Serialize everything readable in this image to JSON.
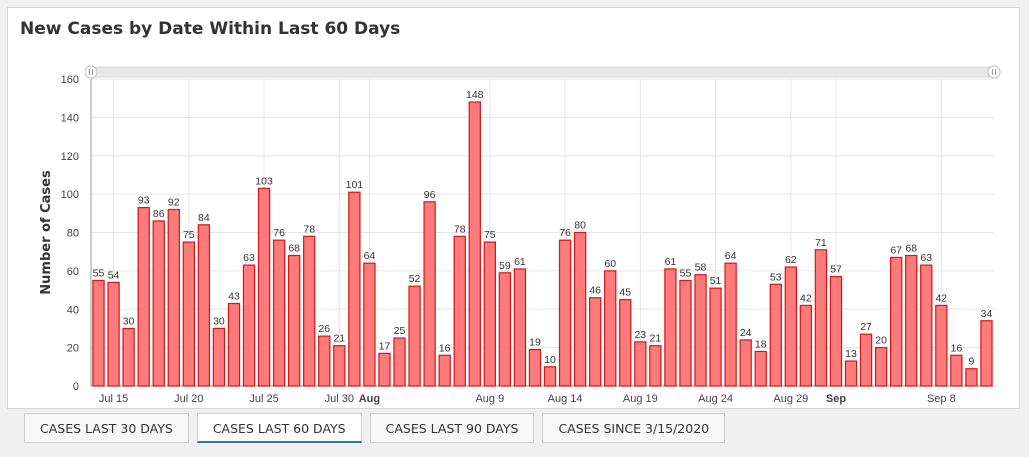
{
  "chart_title": "New Cases by Date Within Last 60 Days",
  "tabs": [
    {
      "label": "CASES LAST 30 DAYS",
      "active": false
    },
    {
      "label": "CASES LAST 60 DAYS",
      "active": true
    },
    {
      "label": "CASES LAST 90 DAYS",
      "active": false
    },
    {
      "label": "CASES SINCE 3/15/2020",
      "active": false
    }
  ],
  "colors": {
    "bar_fill": "#ff7a7a",
    "bar_stroke": "#d01818",
    "grid": "#e6e6e6",
    "tab_active_underline": "#31798a"
  },
  "chart_data": {
    "type": "bar",
    "title": "New Cases by Date Within Last 60 Days",
    "xlabel": "",
    "ylabel": "Number of Cases",
    "ylim": [
      0,
      160
    ],
    "y_ticks": [
      0,
      20,
      40,
      60,
      80,
      100,
      120,
      140,
      160
    ],
    "grid": true,
    "data_labels": true,
    "has_range_slider": true,
    "points": [
      {
        "date": "2020-07-14",
        "value": 55
      },
      {
        "date": "2020-07-15",
        "value": 54
      },
      {
        "date": "2020-07-16",
        "value": 30
      },
      {
        "date": "2020-07-17",
        "value": 93
      },
      {
        "date": "2020-07-18",
        "value": 86
      },
      {
        "date": "2020-07-19",
        "value": 92
      },
      {
        "date": "2020-07-20",
        "value": 75
      },
      {
        "date": "2020-07-21",
        "value": 84
      },
      {
        "date": "2020-07-22",
        "value": 30
      },
      {
        "date": "2020-07-23",
        "value": 43
      },
      {
        "date": "2020-07-24",
        "value": 63
      },
      {
        "date": "2020-07-25",
        "value": 103
      },
      {
        "date": "2020-07-26",
        "value": 76
      },
      {
        "date": "2020-07-27",
        "value": 68
      },
      {
        "date": "2020-07-28",
        "value": 78
      },
      {
        "date": "2020-07-29",
        "value": 26
      },
      {
        "date": "2020-07-30",
        "value": 21
      },
      {
        "date": "2020-07-31",
        "value": 101
      },
      {
        "date": "2020-08-01",
        "value": 64
      },
      {
        "date": "2020-08-02",
        "value": 17
      },
      {
        "date": "2020-08-03",
        "value": 25
      },
      {
        "date": "2020-08-04",
        "value": 52
      },
      {
        "date": "2020-08-05",
        "value": 96
      },
      {
        "date": "2020-08-06",
        "value": 16
      },
      {
        "date": "2020-08-07",
        "value": 78
      },
      {
        "date": "2020-08-08",
        "value": 148
      },
      {
        "date": "2020-08-09",
        "value": 75
      },
      {
        "date": "2020-08-10",
        "value": 59
      },
      {
        "date": "2020-08-11",
        "value": 61
      },
      {
        "date": "2020-08-12",
        "value": 19
      },
      {
        "date": "2020-08-13",
        "value": 10
      },
      {
        "date": "2020-08-14",
        "value": 76
      },
      {
        "date": "2020-08-15",
        "value": 80
      },
      {
        "date": "2020-08-16",
        "value": 46
      },
      {
        "date": "2020-08-17",
        "value": 60
      },
      {
        "date": "2020-08-18",
        "value": 45
      },
      {
        "date": "2020-08-19",
        "value": 23
      },
      {
        "date": "2020-08-20",
        "value": 21
      },
      {
        "date": "2020-08-21",
        "value": 61
      },
      {
        "date": "2020-08-22",
        "value": 55
      },
      {
        "date": "2020-08-23",
        "value": 58
      },
      {
        "date": "2020-08-24",
        "value": 51
      },
      {
        "date": "2020-08-25",
        "value": 64
      },
      {
        "date": "2020-08-26",
        "value": 24
      },
      {
        "date": "2020-08-27",
        "value": 18
      },
      {
        "date": "2020-08-28",
        "value": 53
      },
      {
        "date": "2020-08-29",
        "value": 62
      },
      {
        "date": "2020-08-30",
        "value": 42
      },
      {
        "date": "2020-08-31",
        "value": 71
      },
      {
        "date": "2020-09-01",
        "value": 57
      },
      {
        "date": "2020-09-02",
        "value": 13
      },
      {
        "date": "2020-09-03",
        "value": 27
      },
      {
        "date": "2020-09-04",
        "value": 20
      },
      {
        "date": "2020-09-05",
        "value": 67
      },
      {
        "date": "2020-09-06",
        "value": 68
      },
      {
        "date": "2020-09-07",
        "value": 63
      },
      {
        "date": "2020-09-08",
        "value": 42
      },
      {
        "date": "2020-09-09",
        "value": 16
      },
      {
        "date": "2020-09-10",
        "value": 9
      },
      {
        "date": "2020-09-11",
        "value": 34
      }
    ],
    "x_ticks": [
      {
        "date": "2020-07-15",
        "label": "Jul 15",
        "bold": false
      },
      {
        "date": "2020-07-20",
        "label": "Jul 20",
        "bold": false
      },
      {
        "date": "2020-07-25",
        "label": "Jul 25",
        "bold": false
      },
      {
        "date": "2020-07-30",
        "label": "Jul 30",
        "bold": false
      },
      {
        "date": "2020-08-01",
        "label": "Aug",
        "bold": true
      },
      {
        "date": "2020-08-09",
        "label": "Aug 9",
        "bold": false
      },
      {
        "date": "2020-08-14",
        "label": "Aug 14",
        "bold": false
      },
      {
        "date": "2020-08-19",
        "label": "Aug 19",
        "bold": false
      },
      {
        "date": "2020-08-24",
        "label": "Aug 24",
        "bold": false
      },
      {
        "date": "2020-08-29",
        "label": "Aug 29",
        "bold": false
      },
      {
        "date": "2020-09-01",
        "label": "Sep",
        "bold": true
      },
      {
        "date": "2020-09-08",
        "label": "Sep 8",
        "bold": false
      }
    ]
  }
}
